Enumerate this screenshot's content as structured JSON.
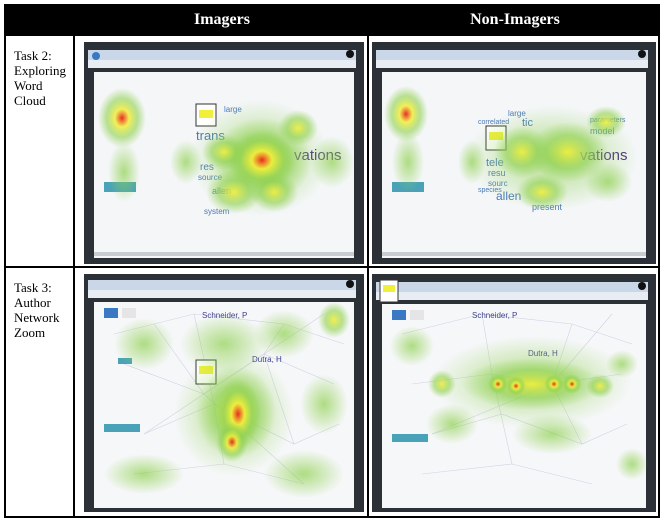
{
  "table": {
    "headers": [
      "Imagers",
      "Non-Imagers"
    ]
  },
  "rows": [
    {
      "label": "Task 2:\nExploring\nWord\nCloud",
      "task": "Task",
      "task_num": "2:",
      "rest": "Exploring\nWord\nCloud"
    },
    {
      "label": "Task 3:\nAuthor\nNetwork\nZoom",
      "task": "Task",
      "task_num": "3:",
      "rest": "Author\nNetwork\nZoom"
    }
  ],
  "wordcloud": {
    "words_imagers": [
      "large",
      "trans",
      "vations",
      "res",
      "source",
      "allen",
      "system",
      "ab"
    ],
    "words_non": [
      "large",
      "correlated",
      "tic",
      "parameters",
      "model",
      "vations",
      "tele",
      "resu",
      "sourc",
      "allen",
      "present",
      "species"
    ]
  },
  "network": {
    "names_imagers": [
      "Schneider, P",
      "Dutra, H"
    ],
    "names_non": [
      "Schneider, P",
      "Dutra, H"
    ]
  },
  "colors": {
    "header_bg": "#000000",
    "header_text": "#ffffff",
    "heat_green": "#8fd14f",
    "heat_yellow": "#f2ef3a",
    "heat_red": "#e8211a",
    "word_purple": "#4b2a86",
    "word_blue": "#4a78b8"
  }
}
